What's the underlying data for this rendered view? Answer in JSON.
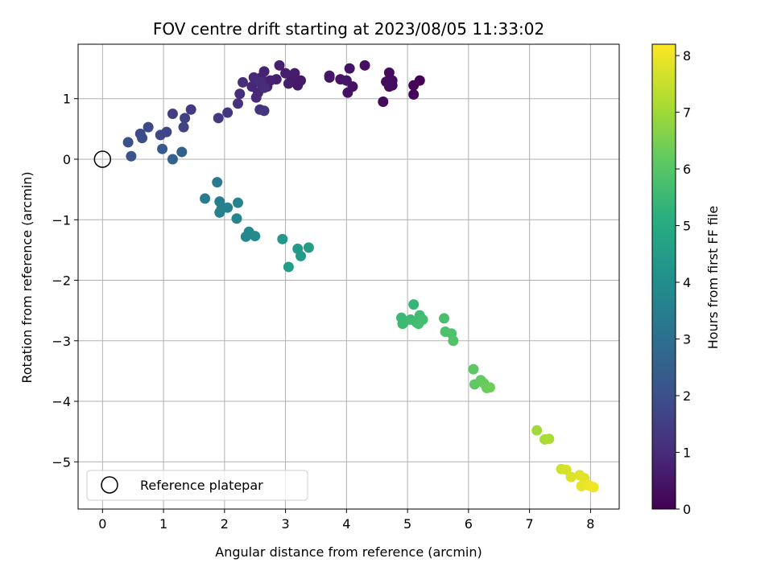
{
  "chart_data": {
    "type": "scatter",
    "title": "FOV centre drift starting at 2023/08/05 11:33:02",
    "xlabel": "Angular distance from reference (arcmin)",
    "ylabel": "Rotation from reference (arcmin)",
    "xlim": [
      -0.4,
      8.47
    ],
    "ylim": [
      -5.78,
      1.9
    ],
    "xticks": [
      0,
      1,
      2,
      3,
      4,
      5,
      6,
      7,
      8
    ],
    "yticks": [
      -5,
      -4,
      -3,
      -2,
      -1,
      0,
      1
    ],
    "xtick_labels": [
      "0",
      "1",
      "2",
      "3",
      "4",
      "5",
      "6",
      "7",
      "8"
    ],
    "ytick_labels": [
      "−5",
      "−4",
      "−3",
      "−2",
      "−1",
      "0",
      "1"
    ],
    "grid": true,
    "legend": {
      "position": "lower-left",
      "entries": [
        "Reference platepar"
      ]
    },
    "reference_point": {
      "x": 0,
      "y": 0,
      "label": "Reference platepar"
    },
    "colorbar": {
      "label": "Hours from first FF file",
      "colormap": "viridis",
      "range": [
        0,
        8.2
      ],
      "ticks": [
        0,
        1,
        2,
        3,
        4,
        5,
        6,
        7,
        8
      ],
      "tick_labels": [
        "0",
        "1",
        "2",
        "3",
        "4",
        "5",
        "6",
        "7",
        "8"
      ]
    },
    "points": [
      {
        "x": 5.2,
        "y": 1.3,
        "c": 0.05
      },
      {
        "x": 5.1,
        "y": 1.22,
        "c": 0.1
      },
      {
        "x": 5.1,
        "y": 1.07,
        "c": 0.15
      },
      {
        "x": 4.6,
        "y": 0.95,
        "c": 0.2
      },
      {
        "x": 4.75,
        "y": 1.22,
        "c": 0.22
      },
      {
        "x": 4.7,
        "y": 1.43,
        "c": 0.25
      },
      {
        "x": 4.65,
        "y": 1.28,
        "c": 0.28
      },
      {
        "x": 4.75,
        "y": 1.3,
        "c": 0.3
      },
      {
        "x": 4.7,
        "y": 1.2,
        "c": 0.32
      },
      {
        "x": 4.3,
        "y": 1.55,
        "c": 0.35
      },
      {
        "x": 4.1,
        "y": 1.2,
        "c": 0.38
      },
      {
        "x": 4.02,
        "y": 1.1,
        "c": 0.4
      },
      {
        "x": 4.05,
        "y": 1.5,
        "c": 0.42
      },
      {
        "x": 3.9,
        "y": 1.32,
        "c": 0.45
      },
      {
        "x": 4.0,
        "y": 1.3,
        "c": 0.47
      },
      {
        "x": 3.72,
        "y": 1.35,
        "c": 0.5
      },
      {
        "x": 3.72,
        "y": 1.38,
        "c": 0.52
      },
      {
        "x": 3.25,
        "y": 1.3,
        "c": 0.55
      },
      {
        "x": 3.2,
        "y": 1.22,
        "c": 0.58
      },
      {
        "x": 3.1,
        "y": 1.35,
        "c": 0.6
      },
      {
        "x": 3.05,
        "y": 1.25,
        "c": 0.62
      },
      {
        "x": 3.15,
        "y": 1.42,
        "c": 0.65
      },
      {
        "x": 3.0,
        "y": 1.42,
        "c": 0.67
      },
      {
        "x": 2.9,
        "y": 1.55,
        "c": 0.7
      },
      {
        "x": 2.85,
        "y": 1.32,
        "c": 0.72
      },
      {
        "x": 2.75,
        "y": 1.3,
        "c": 0.75
      },
      {
        "x": 2.7,
        "y": 1.2,
        "c": 0.78
      },
      {
        "x": 2.65,
        "y": 1.45,
        "c": 0.8
      },
      {
        "x": 2.6,
        "y": 1.35,
        "c": 0.82
      },
      {
        "x": 2.5,
        "y": 1.32,
        "c": 0.85
      },
      {
        "x": 2.45,
        "y": 1.2,
        "c": 0.88
      },
      {
        "x": 2.55,
        "y": 1.1,
        "c": 0.9
      },
      {
        "x": 2.62,
        "y": 1.22,
        "c": 0.92
      },
      {
        "x": 2.52,
        "y": 1.02,
        "c": 0.95
      },
      {
        "x": 2.48,
        "y": 1.35,
        "c": 0.98
      },
      {
        "x": 2.58,
        "y": 1.28,
        "c": 1.0
      },
      {
        "x": 2.65,
        "y": 1.18,
        "c": 1.02
      },
      {
        "x": 2.3,
        "y": 1.27,
        "c": 1.05
      },
      {
        "x": 2.25,
        "y": 1.08,
        "c": 1.1
      },
      {
        "x": 2.22,
        "y": 0.92,
        "c": 1.15
      },
      {
        "x": 2.58,
        "y": 0.82,
        "c": 1.2
      },
      {
        "x": 2.65,
        "y": 0.8,
        "c": 1.25
      },
      {
        "x": 2.05,
        "y": 0.77,
        "c": 1.3
      },
      {
        "x": 1.9,
        "y": 0.68,
        "c": 1.35
      },
      {
        "x": 1.45,
        "y": 0.82,
        "c": 1.4
      },
      {
        "x": 1.15,
        "y": 0.75,
        "c": 1.5
      },
      {
        "x": 1.35,
        "y": 0.68,
        "c": 1.55
      },
      {
        "x": 1.33,
        "y": 0.53,
        "c": 1.6
      },
      {
        "x": 1.05,
        "y": 0.45,
        "c": 1.7
      },
      {
        "x": 0.95,
        "y": 0.4,
        "c": 1.75
      },
      {
        "x": 0.75,
        "y": 0.53,
        "c": 1.8
      },
      {
        "x": 0.62,
        "y": 0.42,
        "c": 1.85
      },
      {
        "x": 0.65,
        "y": 0.35,
        "c": 1.9
      },
      {
        "x": 0.42,
        "y": 0.28,
        "c": 2.0
      },
      {
        "x": 0.47,
        "y": 0.05,
        "c": 2.1
      },
      {
        "x": 0.98,
        "y": 0.17,
        "c": 2.3
      },
      {
        "x": 1.3,
        "y": 0.12,
        "c": 2.5
      },
      {
        "x": 1.15,
        "y": 0.0,
        "c": 2.6
      },
      {
        "x": 1.88,
        "y": -0.38,
        "c": 3.3
      },
      {
        "x": 1.68,
        "y": -0.65,
        "c": 3.4
      },
      {
        "x": 1.92,
        "y": -0.7,
        "c": 3.45
      },
      {
        "x": 1.95,
        "y": -0.82,
        "c": 3.5
      },
      {
        "x": 2.05,
        "y": -0.8,
        "c": 3.55
      },
      {
        "x": 1.92,
        "y": -0.88,
        "c": 3.6
      },
      {
        "x": 2.22,
        "y": -0.72,
        "c": 3.65
      },
      {
        "x": 2.2,
        "y": -0.98,
        "c": 3.7
      },
      {
        "x": 2.4,
        "y": -1.2,
        "c": 3.8
      },
      {
        "x": 2.35,
        "y": -1.28,
        "c": 3.85
      },
      {
        "x": 2.5,
        "y": -1.27,
        "c": 3.9
      },
      {
        "x": 2.95,
        "y": -1.32,
        "c": 4.3
      },
      {
        "x": 3.2,
        "y": -1.48,
        "c": 4.4
      },
      {
        "x": 3.25,
        "y": -1.6,
        "c": 4.45
      },
      {
        "x": 3.38,
        "y": -1.46,
        "c": 4.5
      },
      {
        "x": 3.05,
        "y": -1.78,
        "c": 4.55
      },
      {
        "x": 5.1,
        "y": -2.4,
        "c": 5.4
      },
      {
        "x": 4.9,
        "y": -2.62,
        "c": 5.5
      },
      {
        "x": 4.95,
        "y": -2.68,
        "c": 5.52
      },
      {
        "x": 4.92,
        "y": -2.72,
        "c": 5.55
      },
      {
        "x": 5.05,
        "y": -2.65,
        "c": 5.58
      },
      {
        "x": 5.15,
        "y": -2.7,
        "c": 5.6
      },
      {
        "x": 5.2,
        "y": -2.58,
        "c": 5.62
      },
      {
        "x": 5.25,
        "y": -2.65,
        "c": 5.65
      },
      {
        "x": 5.18,
        "y": -2.72,
        "c": 5.68
      },
      {
        "x": 5.6,
        "y": -2.63,
        "c": 5.75
      },
      {
        "x": 5.62,
        "y": -2.85,
        "c": 5.8
      },
      {
        "x": 5.72,
        "y": -2.88,
        "c": 5.85
      },
      {
        "x": 5.75,
        "y": -3.0,
        "c": 5.9
      },
      {
        "x": 6.08,
        "y": -3.47,
        "c": 6.1
      },
      {
        "x": 6.1,
        "y": -3.72,
        "c": 6.15
      },
      {
        "x": 6.2,
        "y": -3.65,
        "c": 6.2
      },
      {
        "x": 6.25,
        "y": -3.7,
        "c": 6.25
      },
      {
        "x": 6.3,
        "y": -3.78,
        "c": 6.3
      },
      {
        "x": 6.35,
        "y": -3.77,
        "c": 6.35
      },
      {
        "x": 7.12,
        "y": -4.48,
        "c": 7.0
      },
      {
        "x": 7.25,
        "y": -4.63,
        "c": 7.1
      },
      {
        "x": 7.32,
        "y": -4.62,
        "c": 7.15
      },
      {
        "x": 7.52,
        "y": -5.12,
        "c": 7.6
      },
      {
        "x": 7.6,
        "y": -5.13,
        "c": 7.7
      },
      {
        "x": 7.68,
        "y": -5.25,
        "c": 7.75
      },
      {
        "x": 7.82,
        "y": -5.22,
        "c": 7.8
      },
      {
        "x": 7.9,
        "y": -5.27,
        "c": 7.85
      },
      {
        "x": 7.85,
        "y": -5.4,
        "c": 7.9
      },
      {
        "x": 7.95,
        "y": -5.38,
        "c": 7.95
      },
      {
        "x": 8.05,
        "y": -5.42,
        "c": 8.0
      },
      {
        "x": 8.0,
        "y": -5.4,
        "c": 8.05
      }
    ]
  }
}
